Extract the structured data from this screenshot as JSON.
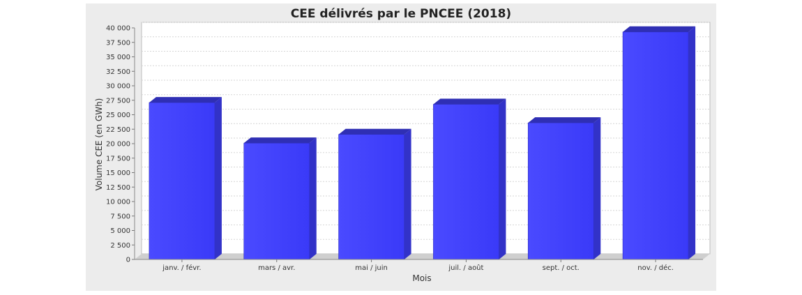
{
  "chart_data": {
    "type": "bar",
    "title": "CEE délivrés par le PNCEE (2018)",
    "xlabel": "Mois",
    "ylabel": "Volume CEE (en GWh)",
    "categories": [
      "janv. / févr.",
      "mars / avr.",
      "mai / juin",
      "juil. / août",
      "sept. / oct.",
      "nov. / déc."
    ],
    "values": [
      27100,
      20100,
      21600,
      26800,
      23600,
      39300
    ],
    "ylim": [
      0,
      40000
    ],
    "yticks": [
      0,
      2500,
      5000,
      7500,
      10000,
      12500,
      15000,
      17500,
      20000,
      22500,
      25000,
      27500,
      30000,
      32500,
      35000,
      37500,
      40000
    ],
    "ytick_labels": [
      "0",
      "2 500",
      "5 000",
      "7 500",
      "10 000",
      "12 500",
      "15 000",
      "17 500",
      "20 000",
      "22 500",
      "25 000",
      "27 500",
      "30 000",
      "32 500",
      "35 000",
      "37 500",
      "40 000"
    ],
    "bar_color": "#4141ff",
    "grid": true,
    "style": "3d"
  }
}
